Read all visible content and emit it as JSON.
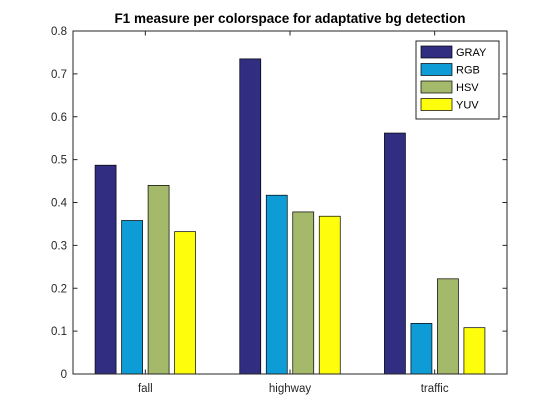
{
  "chart_data": {
    "type": "bar",
    "title": "F1 measure per colorspace for adaptative bg detection",
    "xlabel": "",
    "ylabel": "",
    "categories": [
      "fall",
      "highway",
      "traffic"
    ],
    "ylim": [
      0,
      0.8
    ],
    "yticks": [
      0,
      0.1,
      0.2,
      0.3,
      0.4,
      0.5,
      0.6,
      0.7,
      0.8
    ],
    "grid": false,
    "legend_position": "top-right",
    "series": [
      {
        "name": "GRAY",
        "color": "#312E82",
        "values": [
          0.487,
          0.735,
          0.562
        ]
      },
      {
        "name": "RGB",
        "color": "#0D9CD6",
        "values": [
          0.358,
          0.417,
          0.118
        ]
      },
      {
        "name": "HSV",
        "color": "#A4BA6A",
        "values": [
          0.44,
          0.378,
          0.222
        ]
      },
      {
        "name": "YUV",
        "color": "#FDFD0C",
        "values": [
          0.332,
          0.368,
          0.108
        ]
      }
    ]
  }
}
